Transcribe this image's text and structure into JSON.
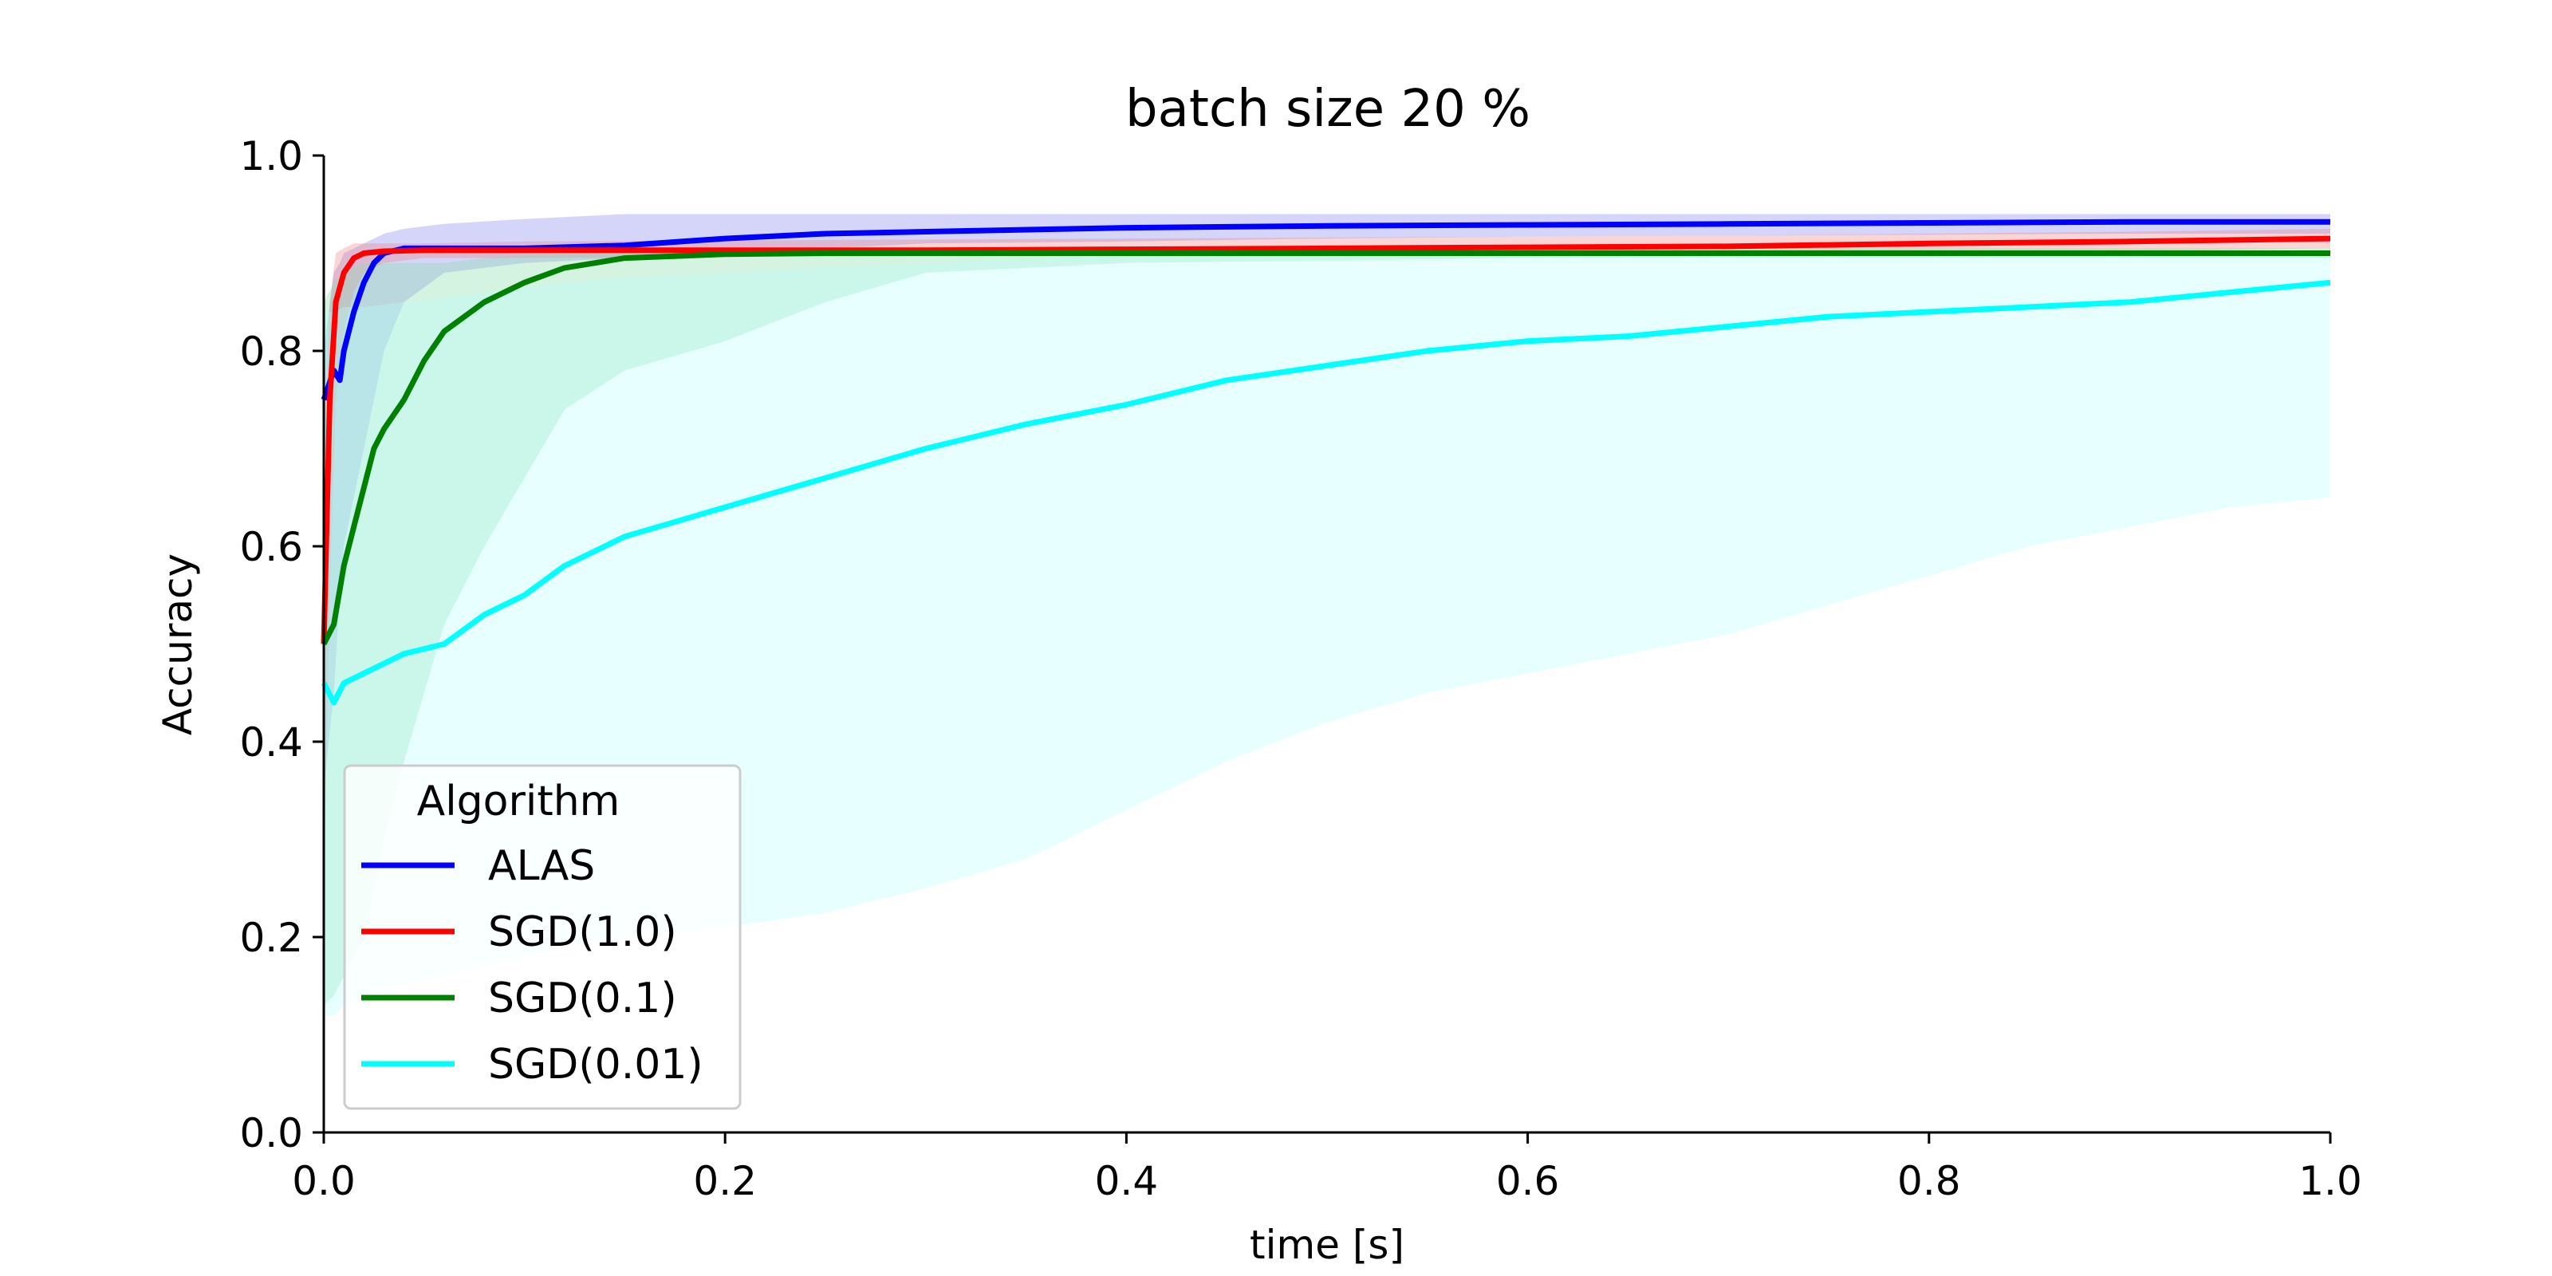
{
  "chart_data": {
    "type": "line",
    "title": "batch size 20 %",
    "xlabel": "time [s]",
    "ylabel": "Accuracy",
    "xlim": [
      0.0,
      1.0
    ],
    "ylim": [
      0.0,
      1.0
    ],
    "xticks": [
      "0.0",
      "0.2",
      "0.4",
      "0.6",
      "0.8",
      "1.0"
    ],
    "yticks": [
      "0.0",
      "0.2",
      "0.4",
      "0.6",
      "0.8",
      "1.0"
    ],
    "grid": false,
    "legend": {
      "title": "Algorithm",
      "placement": "lower-left"
    },
    "series": [
      {
        "name": "ALAS",
        "color": "#0000ff",
        "band_color": "#8888ee",
        "x": [
          0.0,
          0.005,
          0.008,
          0.01,
          0.015,
          0.02,
          0.025,
          0.03,
          0.04,
          0.06,
          0.1,
          0.15,
          0.2,
          0.25,
          0.3,
          0.4,
          0.5,
          0.6,
          0.7,
          0.8,
          0.9,
          1.0
        ],
        "y": [
          0.75,
          0.78,
          0.77,
          0.8,
          0.84,
          0.87,
          0.89,
          0.9,
          0.905,
          0.905,
          0.905,
          0.908,
          0.915,
          0.92,
          0.922,
          0.926,
          0.928,
          0.929,
          0.93,
          0.931,
          0.932,
          0.932
        ],
        "upper": [
          0.8,
          0.88,
          0.89,
          0.9,
          0.905,
          0.91,
          0.915,
          0.92,
          0.925,
          0.93,
          0.935,
          0.94,
          0.94,
          0.94,
          0.94,
          0.94,
          0.94,
          0.94,
          0.94,
          0.94,
          0.94,
          0.94
        ],
        "lower": [
          0.35,
          0.45,
          0.55,
          0.6,
          0.65,
          0.7,
          0.75,
          0.8,
          0.85,
          0.88,
          0.89,
          0.895,
          0.9,
          0.905,
          0.91,
          0.912,
          0.915,
          0.917,
          0.918,
          0.919,
          0.92,
          0.92
        ]
      },
      {
        "name": "SGD(1.0)",
        "color": "#ff0000",
        "band_color": "#ee8888",
        "x": [
          0.0,
          0.003,
          0.006,
          0.01,
          0.015,
          0.02,
          0.03,
          0.05,
          0.1,
          0.2,
          0.3,
          0.4,
          0.5,
          0.6,
          0.7,
          0.8,
          0.9,
          1.0
        ],
        "y": [
          0.5,
          0.75,
          0.85,
          0.88,
          0.895,
          0.9,
          0.902,
          0.903,
          0.903,
          0.903,
          0.903,
          0.904,
          0.905,
          0.906,
          0.907,
          0.91,
          0.912,
          0.915
        ],
        "upper": [
          0.7,
          0.85,
          0.9,
          0.905,
          0.91,
          0.91,
          0.91,
          0.91,
          0.912,
          0.913,
          0.914,
          0.915,
          0.916,
          0.917,
          0.918,
          0.92,
          0.922,
          0.925
        ],
        "lower": [
          0.25,
          0.55,
          0.75,
          0.82,
          0.86,
          0.88,
          0.89,
          0.895,
          0.895,
          0.896,
          0.897,
          0.898,
          0.899,
          0.9,
          0.9,
          0.9,
          0.902,
          0.905
        ]
      },
      {
        "name": "SGD(0.1)",
        "color": "#008000",
        "band_color": "#88ddaa",
        "x": [
          0.0,
          0.005,
          0.01,
          0.015,
          0.02,
          0.025,
          0.03,
          0.04,
          0.05,
          0.06,
          0.08,
          0.1,
          0.12,
          0.15,
          0.2,
          0.25,
          0.3,
          0.4,
          0.6,
          0.8,
          1.0
        ],
        "y": [
          0.5,
          0.52,
          0.58,
          0.62,
          0.66,
          0.7,
          0.72,
          0.75,
          0.79,
          0.82,
          0.85,
          0.87,
          0.885,
          0.895,
          0.899,
          0.9,
          0.9,
          0.9,
          0.9,
          0.9,
          0.9
        ],
        "upper": [
          0.85,
          0.87,
          0.88,
          0.885,
          0.89,
          0.89,
          0.89,
          0.89,
          0.89,
          0.89,
          0.895,
          0.898,
          0.9,
          0.9,
          0.905,
          0.905,
          0.905,
          0.905,
          0.905,
          0.905,
          0.905
        ],
        "lower": [
          0.13,
          0.14,
          0.16,
          0.18,
          0.2,
          0.25,
          0.3,
          0.38,
          0.45,
          0.52,
          0.6,
          0.67,
          0.74,
          0.78,
          0.81,
          0.85,
          0.88,
          0.89,
          0.895,
          0.895,
          0.895
        ]
      },
      {
        "name": "SGD(0.01)",
        "color": "#00ffff",
        "band_color": "#bbffff",
        "x": [
          0.0,
          0.005,
          0.01,
          0.02,
          0.04,
          0.06,
          0.08,
          0.1,
          0.12,
          0.15,
          0.2,
          0.25,
          0.3,
          0.35,
          0.4,
          0.45,
          0.5,
          0.55,
          0.6,
          0.65,
          0.7,
          0.75,
          0.8,
          0.85,
          0.9,
          0.95,
          1.0
        ],
        "y": [
          0.46,
          0.44,
          0.46,
          0.47,
          0.49,
          0.5,
          0.53,
          0.55,
          0.58,
          0.61,
          0.64,
          0.67,
          0.7,
          0.725,
          0.745,
          0.77,
          0.785,
          0.8,
          0.81,
          0.815,
          0.825,
          0.835,
          0.84,
          0.845,
          0.85,
          0.86,
          0.87
        ],
        "upper": [
          0.84,
          0.84,
          0.845,
          0.845,
          0.85,
          0.855,
          0.86,
          0.865,
          0.87,
          0.875,
          0.88,
          0.885,
          0.89,
          0.895,
          0.897,
          0.898,
          0.9,
          0.9,
          0.9,
          0.9,
          0.9,
          0.9,
          0.9,
          0.9,
          0.9,
          0.9,
          0.9
        ],
        "lower": [
          0.12,
          0.12,
          0.13,
          0.14,
          0.15,
          0.16,
          0.17,
          0.18,
          0.19,
          0.2,
          0.21,
          0.225,
          0.25,
          0.28,
          0.33,
          0.38,
          0.42,
          0.45,
          0.47,
          0.49,
          0.51,
          0.54,
          0.57,
          0.6,
          0.62,
          0.64,
          0.65
        ]
      }
    ]
  }
}
